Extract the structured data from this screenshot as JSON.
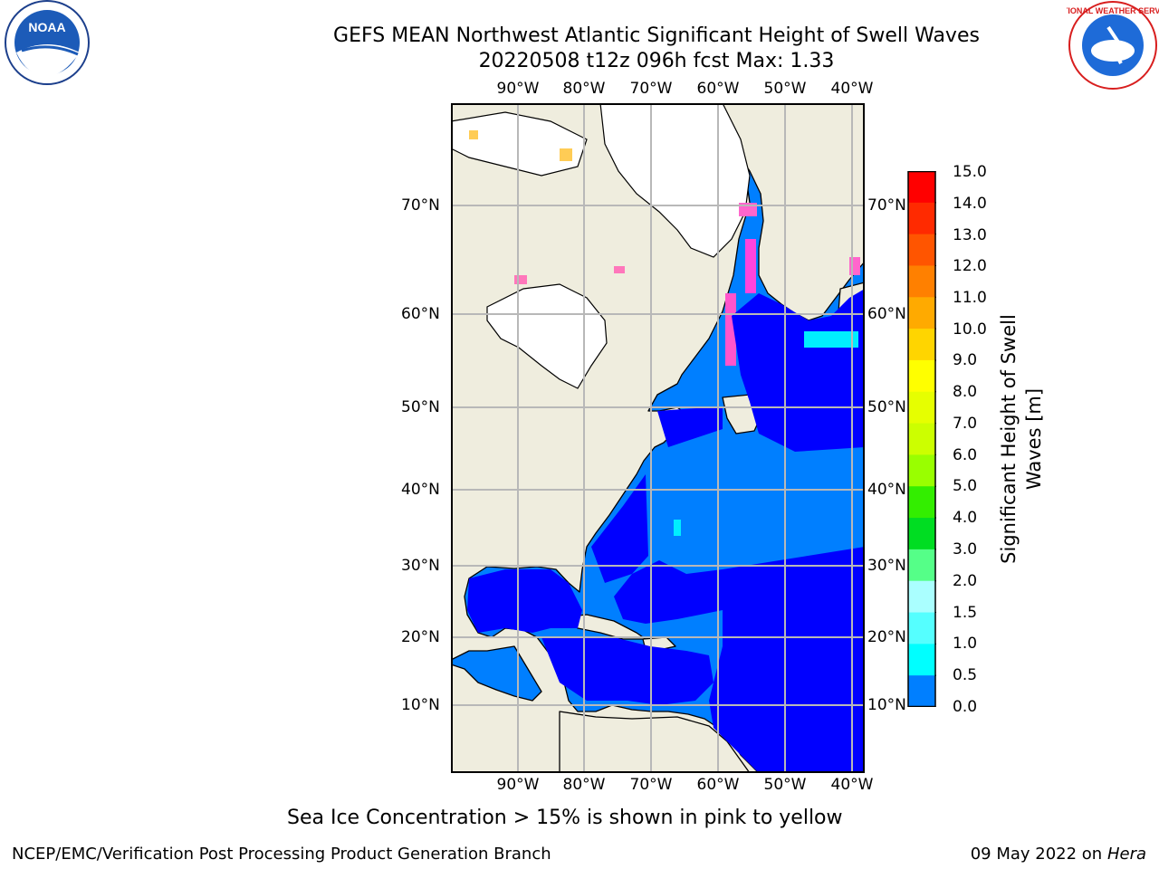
{
  "header": {
    "title": "GEFS MEAN Northwest Atlantic Significant Height of Swell Waves",
    "subtitle": "20220508 t12z 096h fcst   Max: 1.33"
  },
  "logos": {
    "left": {
      "name": "noaa-logo",
      "text": "NOAA"
    },
    "right": {
      "name": "nws-logo",
      "text": "NATIONAL WEATHER SERVICE"
    }
  },
  "map": {
    "lon_ticks": [
      "90°W",
      "80°W",
      "70°W",
      "60°W",
      "50°W",
      "40°W"
    ],
    "lat_ticks": [
      "70°N",
      "60°N",
      "50°N",
      "40°N",
      "30°N",
      "20°N",
      "10°N"
    ],
    "region": "Northwest Atlantic",
    "land_color": "#efedde",
    "no_data_color": "#ffffff",
    "grid_color": "#b8b8b8",
    "ice_note": "Sea Ice Concentration > 15% is shown in pink to yellow"
  },
  "colorbar": {
    "title": "Significant Height of Swell Waves [m]",
    "labels": [
      "15.0",
      "14.0",
      "13.0",
      "12.0",
      "11.0",
      "10.0",
      "9.0",
      "8.0",
      "7.0",
      "6.0",
      "5.0",
      "4.0",
      "3.0",
      "2.0",
      "1.5",
      "1.0",
      "0.5",
      "0.0"
    ],
    "colors": [
      "#ff0000",
      "#ff2a00",
      "#ff5500",
      "#ff8000",
      "#ffaa00",
      "#ffd500",
      "#ffff00",
      "#e6ff00",
      "#ccff00",
      "#99ff00",
      "#33ee00",
      "#00dd22",
      "#55ff88",
      "#aaffff",
      "#55ffff",
      "#00ffff",
      "#007fff",
      "#0000ff"
    ]
  },
  "footer": {
    "left": "NCEP/EMC/Verification Post Processing Product Generation Branch",
    "date": "09 May 2022 on",
    "host": "Hera"
  }
}
